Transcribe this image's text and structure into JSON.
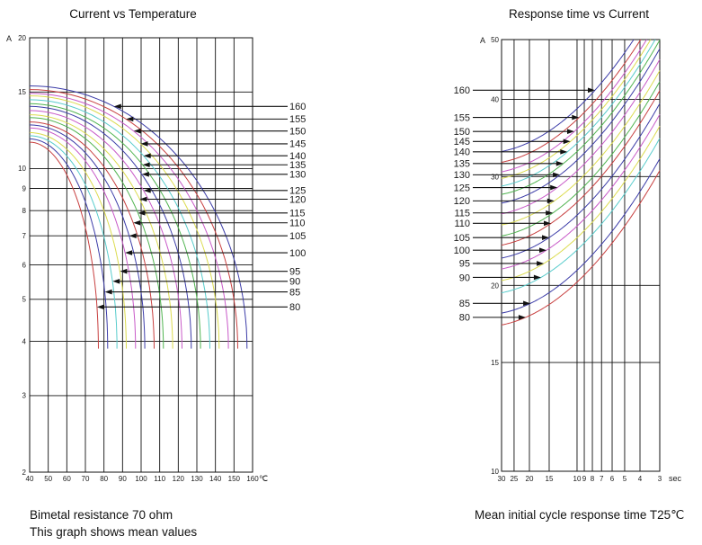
{
  "page": {
    "background": "#ffffff",
    "text_color": "#1a1a1a"
  },
  "left_chart": {
    "title": "Current vs Temperature",
    "y_unit": "A",
    "x_unit": "℃",
    "caption_line1": "Bimetal resistance 70 ohm",
    "caption_line2": "This graph shows mean values"
  },
  "right_chart": {
    "title": "Response time vs Current",
    "y_unit": "A",
    "x_unit": "sec",
    "caption": "Mean initial cycle response time T25℃"
  },
  "chart_data": [
    {
      "id": "current-vs-temperature",
      "type": "line",
      "title": "Current vs Temperature",
      "xlabel": "℃",
      "ylabel": "A",
      "x_scale": "linear",
      "y_scale": "log",
      "xlim": [
        40,
        160
      ],
      "ylim": [
        2,
        20
      ],
      "x_ticks": [
        40,
        50,
        60,
        70,
        80,
        90,
        100,
        110,
        120,
        130,
        140,
        150,
        160
      ],
      "y_ticks": [
        20,
        15,
        10,
        9,
        8,
        7,
        6,
        5,
        4,
        3,
        2
      ],
      "grid": true,
      "legend_position": "right-leader-labels",
      "curve_model": "quarter-ellipse from (40C, current_at_40C_A) down to (cutoff_temp_C, tail_current_A)",
      "tail_current_A": 3.85,
      "series": [
        {
          "rating": "160",
          "color": "#3c3ca8",
          "current_at_40C_A": 15.5,
          "cutoff_temp_C": 157,
          "label_pointer_at_A": 13.9
        },
        {
          "rating": "155",
          "color": "#c84040",
          "current_at_40C_A": 15.2,
          "cutoff_temp_C": 152,
          "label_pointer_at_A": 13.0
        },
        {
          "rating": "150",
          "color": "#c85ac8",
          "current_at_40C_A": 14.9,
          "cutoff_temp_C": 147,
          "label_pointer_at_A": 12.2
        },
        {
          "rating": "145",
          "color": "#dcdc50",
          "current_at_40C_A": 14.7,
          "cutoff_temp_C": 142,
          "label_pointer_at_A": 11.4
        },
        {
          "rating": "140",
          "color": "#58cccc",
          "current_at_40C_A": 14.4,
          "cutoff_temp_C": 137,
          "label_pointer_at_A": 10.7
        },
        {
          "rating": "135",
          "color": "#50b450",
          "current_at_40C_A": 14.1,
          "cutoff_temp_C": 132,
          "label_pointer_at_A": 10.2
        },
        {
          "rating": "130",
          "color": "#3c3ca8",
          "current_at_40C_A": 13.9,
          "cutoff_temp_C": 127,
          "label_pointer_at_A": 9.7
        },
        {
          "rating": "125",
          "color": "#c85ac8",
          "current_at_40C_A": 13.6,
          "cutoff_temp_C": 122,
          "label_pointer_at_A": 8.9
        },
        {
          "rating": "120",
          "color": "#dcdc50",
          "current_at_40C_A": 13.3,
          "cutoff_temp_C": 117,
          "label_pointer_at_A": 8.5
        },
        {
          "rating": "115",
          "color": "#50b450",
          "current_at_40C_A": 13.1,
          "cutoff_temp_C": 112,
          "label_pointer_at_A": 7.9
        },
        {
          "rating": "110",
          "color": "#c84040",
          "current_at_40C_A": 12.8,
          "cutoff_temp_C": 107,
          "label_pointer_at_A": 7.5
        },
        {
          "rating": "105",
          "color": "#3c3ca8",
          "current_at_40C_A": 12.6,
          "cutoff_temp_C": 102,
          "label_pointer_at_A": 7.0
        },
        {
          "rating": "100",
          "color": "#c85ac8",
          "current_at_40C_A": 12.4,
          "cutoff_temp_C": 97,
          "label_pointer_at_A": 6.4
        },
        {
          "rating": "95",
          "color": "#dcdc50",
          "current_at_40C_A": 12.1,
          "cutoff_temp_C": 92,
          "label_pointer_at_A": 5.8
        },
        {
          "rating": "90",
          "color": "#58cccc",
          "current_at_40C_A": 11.9,
          "cutoff_temp_C": 87,
          "label_pointer_at_A": 5.5
        },
        {
          "rating": "85",
          "color": "#3c3ca8",
          "current_at_40C_A": 11.7,
          "cutoff_temp_C": 82,
          "label_pointer_at_A": 5.2
        },
        {
          "rating": "80",
          "color": "#c84040",
          "current_at_40C_A": 11.5,
          "cutoff_temp_C": 77,
          "label_pointer_at_A": 4.8
        }
      ],
      "caption": [
        "Bimetal resistance 70 ohm",
        "This graph shows mean values"
      ]
    },
    {
      "id": "response-time-vs-current",
      "type": "line",
      "title": "Response time vs Current",
      "xlabel": "sec",
      "ylabel": "A",
      "x_scale": "log-reversed",
      "y_scale": "log",
      "xlim": [
        30,
        3
      ],
      "ylim": [
        10,
        50
      ],
      "x_ticks": [
        30,
        25,
        20,
        15,
        10,
        9,
        8,
        7,
        6,
        5,
        4,
        3
      ],
      "y_ticks": [
        50,
        40,
        30,
        20,
        15,
        10
      ],
      "grid": true,
      "legend_position": "left-leader-labels",
      "curve_model": "log-log rise: logI(u) = log(anchor_current_A) + 0.05*(u-ua) + 0.20*(u^2-ua^2), u = log10(30/t)",
      "rise_coeff_linear": 0.05,
      "rise_coeff_quad": 0.2,
      "series": [
        {
          "rating": "160",
          "color": "#3c3ca8",
          "anchor_time_s": 7.7,
          "anchor_current_A": 41.4
        },
        {
          "rating": "155",
          "color": "#c84040",
          "anchor_time_s": 9.7,
          "anchor_current_A": 37.4
        },
        {
          "rating": "150",
          "color": "#c85ac8",
          "anchor_time_s": 10.4,
          "anchor_current_A": 35.5
        },
        {
          "rating": "145",
          "color": "#dcdc50",
          "anchor_time_s": 11.0,
          "anchor_current_A": 34.2
        },
        {
          "rating": "140",
          "color": "#58cccc",
          "anchor_time_s": 11.5,
          "anchor_current_A": 32.9
        },
        {
          "rating": "135",
          "color": "#50b450",
          "anchor_time_s": 12.2,
          "anchor_current_A": 31.5
        },
        {
          "rating": "130",
          "color": "#3c3ca8",
          "anchor_time_s": 12.8,
          "anchor_current_A": 30.2
        },
        {
          "rating": "125",
          "color": "#c85ac8",
          "anchor_time_s": 13.3,
          "anchor_current_A": 28.8
        },
        {
          "rating": "120",
          "color": "#dcdc50",
          "anchor_time_s": 13.9,
          "anchor_current_A": 27.4
        },
        {
          "rating": "115",
          "color": "#50b450",
          "anchor_time_s": 14.2,
          "anchor_current_A": 26.2
        },
        {
          "rating": "110",
          "color": "#c84040",
          "anchor_time_s": 14.6,
          "anchor_current_A": 25.2
        },
        {
          "rating": "105",
          "color": "#3c3ca8",
          "anchor_time_s": 15.0,
          "anchor_current_A": 23.9
        },
        {
          "rating": "100",
          "color": "#c85ac8",
          "anchor_time_s": 15.6,
          "anchor_current_A": 22.8
        },
        {
          "rating": "95",
          "color": "#dcdc50",
          "anchor_time_s": 16.2,
          "anchor_current_A": 21.7
        },
        {
          "rating": "90",
          "color": "#58cccc",
          "anchor_time_s": 16.9,
          "anchor_current_A": 20.6
        },
        {
          "rating": "85",
          "color": "#3c3ca8",
          "anchor_time_s": 19.7,
          "anchor_current_A": 18.7
        },
        {
          "rating": "80",
          "color": "#c84040",
          "anchor_time_s": 21.1,
          "anchor_current_A": 17.75
        }
      ],
      "caption": [
        "Mean initial cycle response time T25℃"
      ]
    }
  ]
}
